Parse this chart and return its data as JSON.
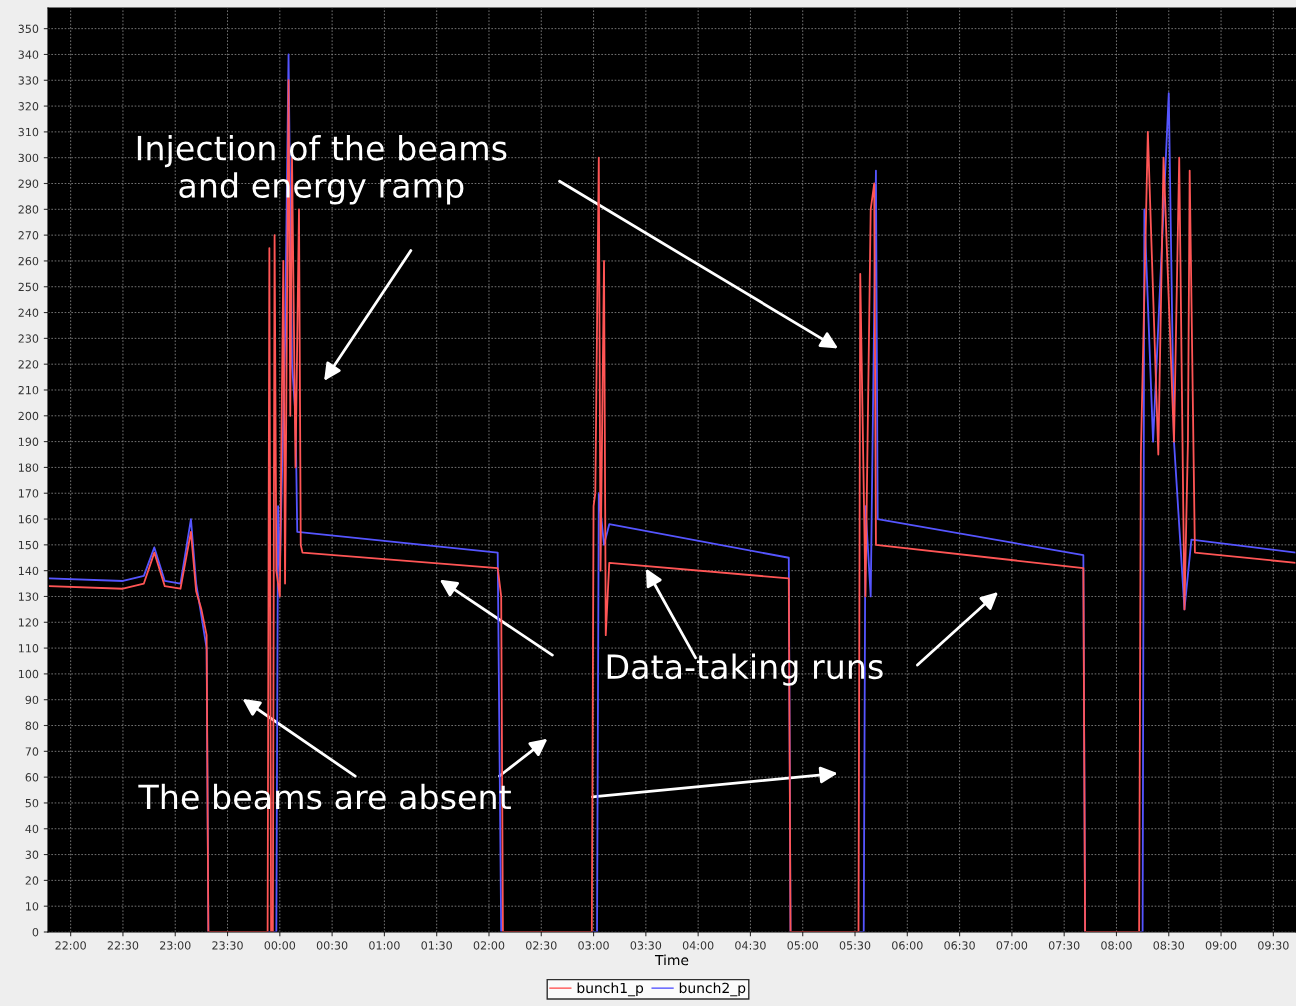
{
  "chart_data": {
    "type": "line",
    "xlabel": "Time",
    "annotations": [
      "Injection of the beams\nand energy ramp",
      "Data-taking runs",
      "The beams are absent"
    ],
    "xlim": [
      "2000-01-01T21:47",
      "2000-01-02T09:43"
    ],
    "ylim": [
      0,
      358
    ],
    "xticks": [
      {
        "value": "2000-01-01T22:00",
        "label": "22:00"
      },
      {
        "value": "2000-01-01T22:30",
        "label": "22:30"
      },
      {
        "value": "2000-01-01T23:00",
        "label": "23:00"
      },
      {
        "value": "2000-01-01T23:30",
        "label": "23:30"
      },
      {
        "value": "2000-01-02T00:00",
        "label": "00:00"
      },
      {
        "value": "2000-01-02T00:30",
        "label": "00:30"
      },
      {
        "value": "2000-01-02T01:00",
        "label": "01:00"
      },
      {
        "value": "2000-01-02T01:30",
        "label": "01:30"
      },
      {
        "value": "2000-01-02T02:00",
        "label": "02:00"
      },
      {
        "value": "2000-01-02T02:30",
        "label": "02:30"
      },
      {
        "value": "2000-01-02T03:00",
        "label": "03:00"
      },
      {
        "value": "2000-01-02T03:30",
        "label": "03:30"
      },
      {
        "value": "2000-01-02T04:00",
        "label": "04:00"
      },
      {
        "value": "2000-01-02T04:30",
        "label": "04:30"
      },
      {
        "value": "2000-01-02T05:00",
        "label": "05:00"
      },
      {
        "value": "2000-01-02T05:30",
        "label": "05:30"
      },
      {
        "value": "2000-01-02T06:00",
        "label": "06:00"
      },
      {
        "value": "2000-01-02T06:30",
        "label": "06:30"
      },
      {
        "value": "2000-01-02T07:00",
        "label": "07:00"
      },
      {
        "value": "2000-01-02T07:30",
        "label": "07:30"
      },
      {
        "value": "2000-01-02T08:00",
        "label": "08:00"
      },
      {
        "value": "2000-01-02T08:30",
        "label": "08:30"
      },
      {
        "value": "2000-01-02T09:00",
        "label": "09:00"
      },
      {
        "value": "2000-01-02T09:30",
        "label": "09:30"
      }
    ],
    "yticks": [
      0,
      10,
      20,
      30,
      40,
      50,
      60,
      70,
      80,
      90,
      100,
      110,
      120,
      130,
      140,
      150,
      160,
      170,
      180,
      190,
      200,
      210,
      220,
      230,
      240,
      250,
      260,
      270,
      280,
      290,
      300,
      310,
      320,
      330,
      340,
      350
    ],
    "grid": true,
    "legend": "bottom",
    "marker": "none",
    "line_style": "solid",
    "series": [
      {
        "name": "bunch1_p",
        "color": "#ff5555",
        "x": [
          "2000-01-01T21:48",
          "2000-01-01T22:30",
          "2000-01-01T22:42",
          "2000-01-01T22:48",
          "2000-01-01T22:54",
          "2000-01-01T23:03",
          "2000-01-01T23:09",
          "2000-01-01T23:12",
          "2000-01-01T23:15",
          "2000-01-01T23:18",
          "2000-01-01T23:19",
          "2000-01-01T23:53",
          "2000-01-01T23:54",
          "2000-01-01T23:55",
          "2000-01-01T23:56",
          "2000-01-01T23:57",
          "2000-01-01T23:58",
          "2000-01-02T00:00",
          "2000-01-02T00:02",
          "2000-01-02T00:03",
          "2000-01-02T00:05",
          "2000-01-02T00:06",
          "2000-01-02T00:07",
          "2000-01-02T00:09",
          "2000-01-02T00:11",
          "2000-01-02T00:12",
          "2000-01-02T00:13",
          "2000-01-02T02:05",
          "2000-01-02T02:07",
          "2000-01-02T02:08",
          "2000-01-02T02:59",
          "2000-01-02T03:00",
          "2000-01-02T03:01",
          "2000-01-02T03:03",
          "2000-01-02T03:04",
          "2000-01-02T03:06",
          "2000-01-02T03:07",
          "2000-01-02T03:09",
          "2000-01-02T04:52",
          "2000-01-02T04:53",
          "2000-01-02T05:32",
          "2000-01-02T05:33",
          "2000-01-02T05:36",
          "2000-01-02T05:39",
          "2000-01-02T05:41",
          "2000-01-02T05:42",
          "2000-01-02T07:41",
          "2000-01-02T07:42",
          "2000-01-02T08:13",
          "2000-01-02T08:14",
          "2000-01-02T08:18",
          "2000-01-02T08:24",
          "2000-01-02T08:27",
          "2000-01-02T08:33",
          "2000-01-02T08:36",
          "2000-01-02T08:39",
          "2000-01-02T08:41",
          "2000-01-02T08:42",
          "2000-01-02T08:45",
          "2000-01-02T09:43"
        ],
        "values": [
          134,
          133,
          135,
          147,
          134,
          133,
          155,
          132,
          125,
          115,
          0,
          0,
          265,
          0,
          0,
          270,
          140,
          130,
          260,
          135,
          330,
          200,
          300,
          180,
          280,
          150,
          147,
          141,
          130,
          0,
          0,
          165,
          170,
          300,
          140,
          260,
          115,
          143,
          137,
          0,
          0,
          255,
          130,
          280,
          290,
          150,
          141,
          0,
          0,
          185,
          310,
          185,
          300,
          190,
          300,
          125,
          190,
          295,
          147,
          143
        ]
      },
      {
        "name": "bunch2_p",
        "color": "#5555ff",
        "x": [
          "2000-01-01T21:48",
          "2000-01-01T22:30",
          "2000-01-01T22:42",
          "2000-01-01T22:48",
          "2000-01-01T22:54",
          "2000-01-01T23:03",
          "2000-01-01T23:09",
          "2000-01-01T23:12",
          "2000-01-01T23:18",
          "2000-01-01T23:19",
          "2000-01-01T23:58",
          "2000-01-01T23:59",
          "2000-01-02T00:00",
          "2000-01-02T00:03",
          "2000-01-02T00:05",
          "2000-01-02T00:07",
          "2000-01-02T00:09",
          "2000-01-02T00:10",
          "2000-01-02T02:05",
          "2000-01-02T02:07",
          "2000-01-02T03:02",
          "2000-01-02T03:03",
          "2000-01-02T03:06",
          "2000-01-02T03:09",
          "2000-01-02T04:52",
          "2000-01-02T04:53",
          "2000-01-02T05:35",
          "2000-01-02T05:36",
          "2000-01-02T05:39",
          "2000-01-02T05:42",
          "2000-01-02T05:43",
          "2000-01-02T07:41",
          "2000-01-02T07:42",
          "2000-01-02T08:15",
          "2000-01-02T08:16",
          "2000-01-02T08:21",
          "2000-01-02T08:30",
          "2000-01-02T08:33",
          "2000-01-02T08:39",
          "2000-01-02T08:43",
          "2000-01-02T09:43"
        ],
        "values": [
          137,
          136,
          138,
          149,
          136,
          135,
          160,
          135,
          110,
          0,
          0,
          165,
          140,
          230,
          340,
          220,
          200,
          155,
          147,
          0,
          0,
          170,
          150,
          158,
          145,
          0,
          0,
          165,
          130,
          295,
          160,
          146,
          0,
          0,
          280,
          190,
          325,
          190,
          125,
          152,
          147
        ]
      }
    ]
  }
}
